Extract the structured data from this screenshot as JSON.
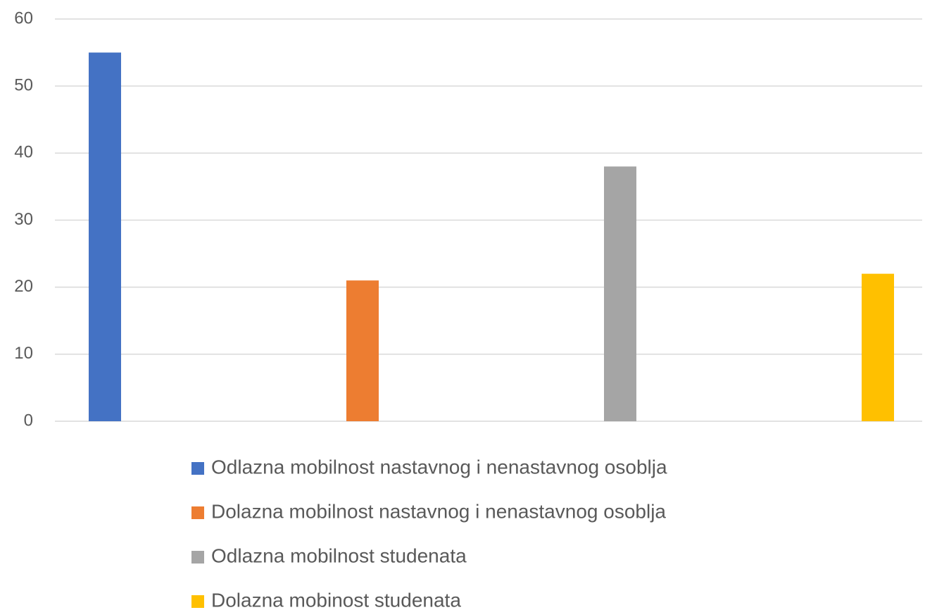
{
  "chart_data": {
    "type": "bar",
    "series": [
      {
        "name": "Odlazna mobilnost nastavnog i nenastavnog osoblja",
        "color": "#4472c4",
        "values": [
          55
        ]
      },
      {
        "name": "Dolazna mobilnost nastavnog i nenastavnog osoblja",
        "color": "#ed7d31",
        "values": [
          21
        ]
      },
      {
        "name": "Odlazna mobilnost studenata",
        "color": "#a5a5a5",
        "values": [
          38
        ]
      },
      {
        "name": "Dolazna mobinost studenata",
        "color": "#ffc000",
        "values": [
          22
        ]
      }
    ],
    "ylim": [
      0,
      60
    ],
    "yticks": [
      0,
      10,
      20,
      30,
      40,
      50,
      60
    ],
    "grid": true,
    "legend": "bottom"
  }
}
